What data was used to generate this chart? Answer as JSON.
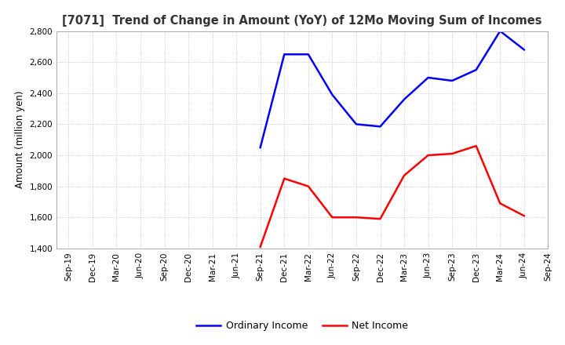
{
  "title": "[7071]  Trend of Change in Amount (YoY) of 12Mo Moving Sum of Incomes",
  "ylabel": "Amount (million yen)",
  "ylim": [
    1400,
    2800
  ],
  "yticks": [
    1400,
    1600,
    1800,
    2000,
    2200,
    2400,
    2600,
    2800
  ],
  "x_labels": [
    "Sep-19",
    "Dec-19",
    "Mar-20",
    "Jun-20",
    "Sep-20",
    "Dec-20",
    "Mar-21",
    "Jun-21",
    "Sep-21",
    "Dec-21",
    "Mar-22",
    "Jun-22",
    "Sep-22",
    "Dec-22",
    "Mar-23",
    "Jun-23",
    "Sep-23",
    "Dec-23",
    "Mar-24",
    "Jun-24",
    "Sep-24"
  ],
  "ordinary_income": {
    "x_indices": [
      8,
      9,
      10,
      11,
      12,
      13,
      14,
      15,
      16,
      17,
      18,
      19
    ],
    "values": [
      2050,
      2650,
      2650,
      2390,
      2200,
      2185,
      2360,
      2500,
      2480,
      2550,
      2800,
      2680
    ]
  },
  "net_income": {
    "x_indices": [
      8,
      9,
      10,
      11,
      12,
      13,
      14,
      15,
      16,
      17,
      18,
      19
    ],
    "values": [
      1410,
      1850,
      1800,
      1600,
      1600,
      1590,
      1870,
      2000,
      2010,
      2060,
      1690,
      1610
    ]
  },
  "line_color_ordinary": "#0000ff",
  "line_color_net": "#ff0000",
  "line_width": 1.8,
  "grid_color": "#bbbbbb",
  "background_color": "#ffffff",
  "legend_ordinary": "Ordinary Income",
  "legend_net": "Net Income",
  "title_fontsize": 10.5,
  "axis_label_fontsize": 8.5,
  "tick_fontsize": 7.5
}
